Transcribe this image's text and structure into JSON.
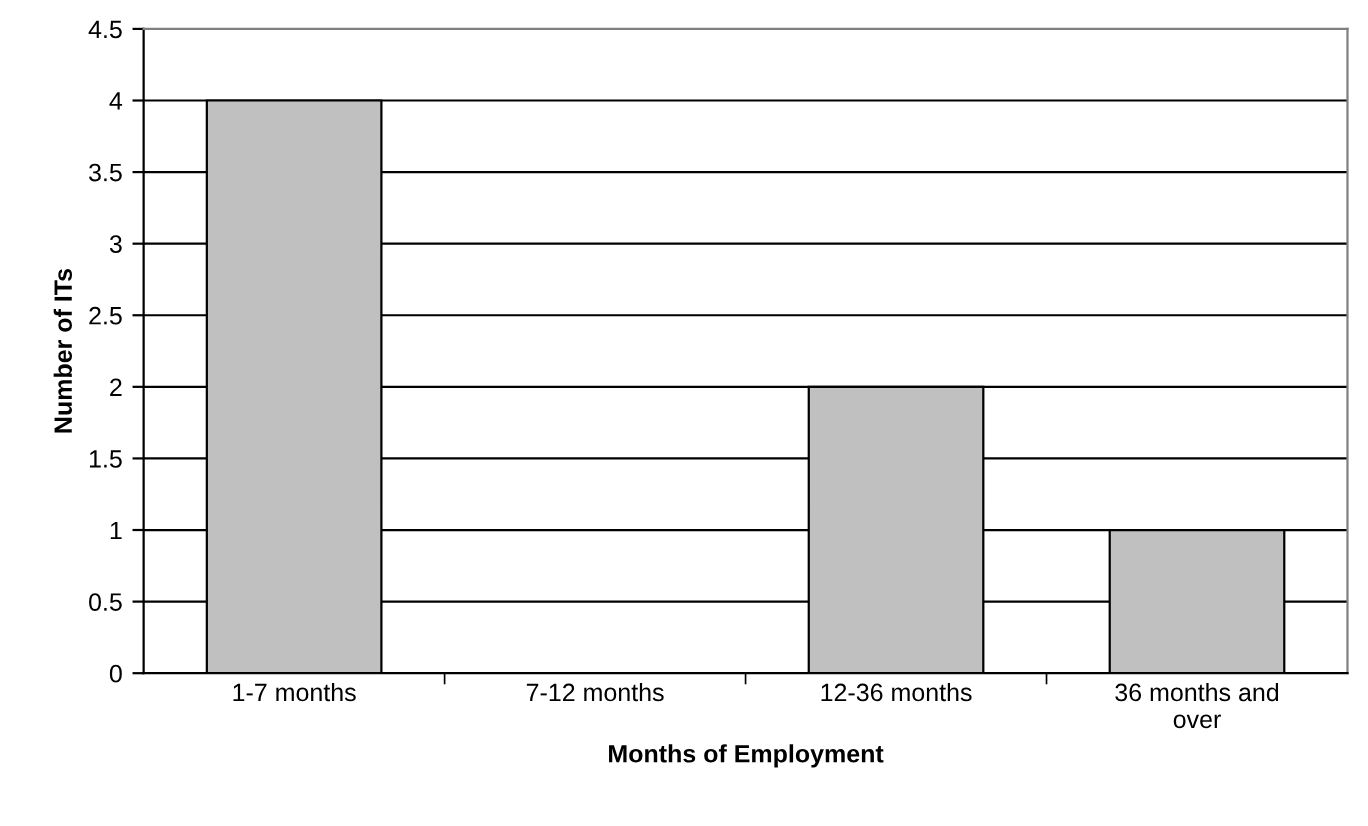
{
  "chart_data": {
    "type": "bar",
    "xlabel": "Months of Employment",
    "ylabel": "Number of ITs",
    "categories": [
      "1-7 months",
      "7-12 months",
      "12-36 months",
      "36 months and\nover"
    ],
    "values": [
      4,
      0,
      2,
      1
    ],
    "color": "#c0c0c0",
    "ylim": [
      0,
      4.5
    ],
    "yticks": [
      0,
      0.5,
      1,
      1.5,
      2,
      2.5,
      3,
      3.5,
      4,
      4.5
    ],
    "grid": "y",
    "legend": false
  }
}
